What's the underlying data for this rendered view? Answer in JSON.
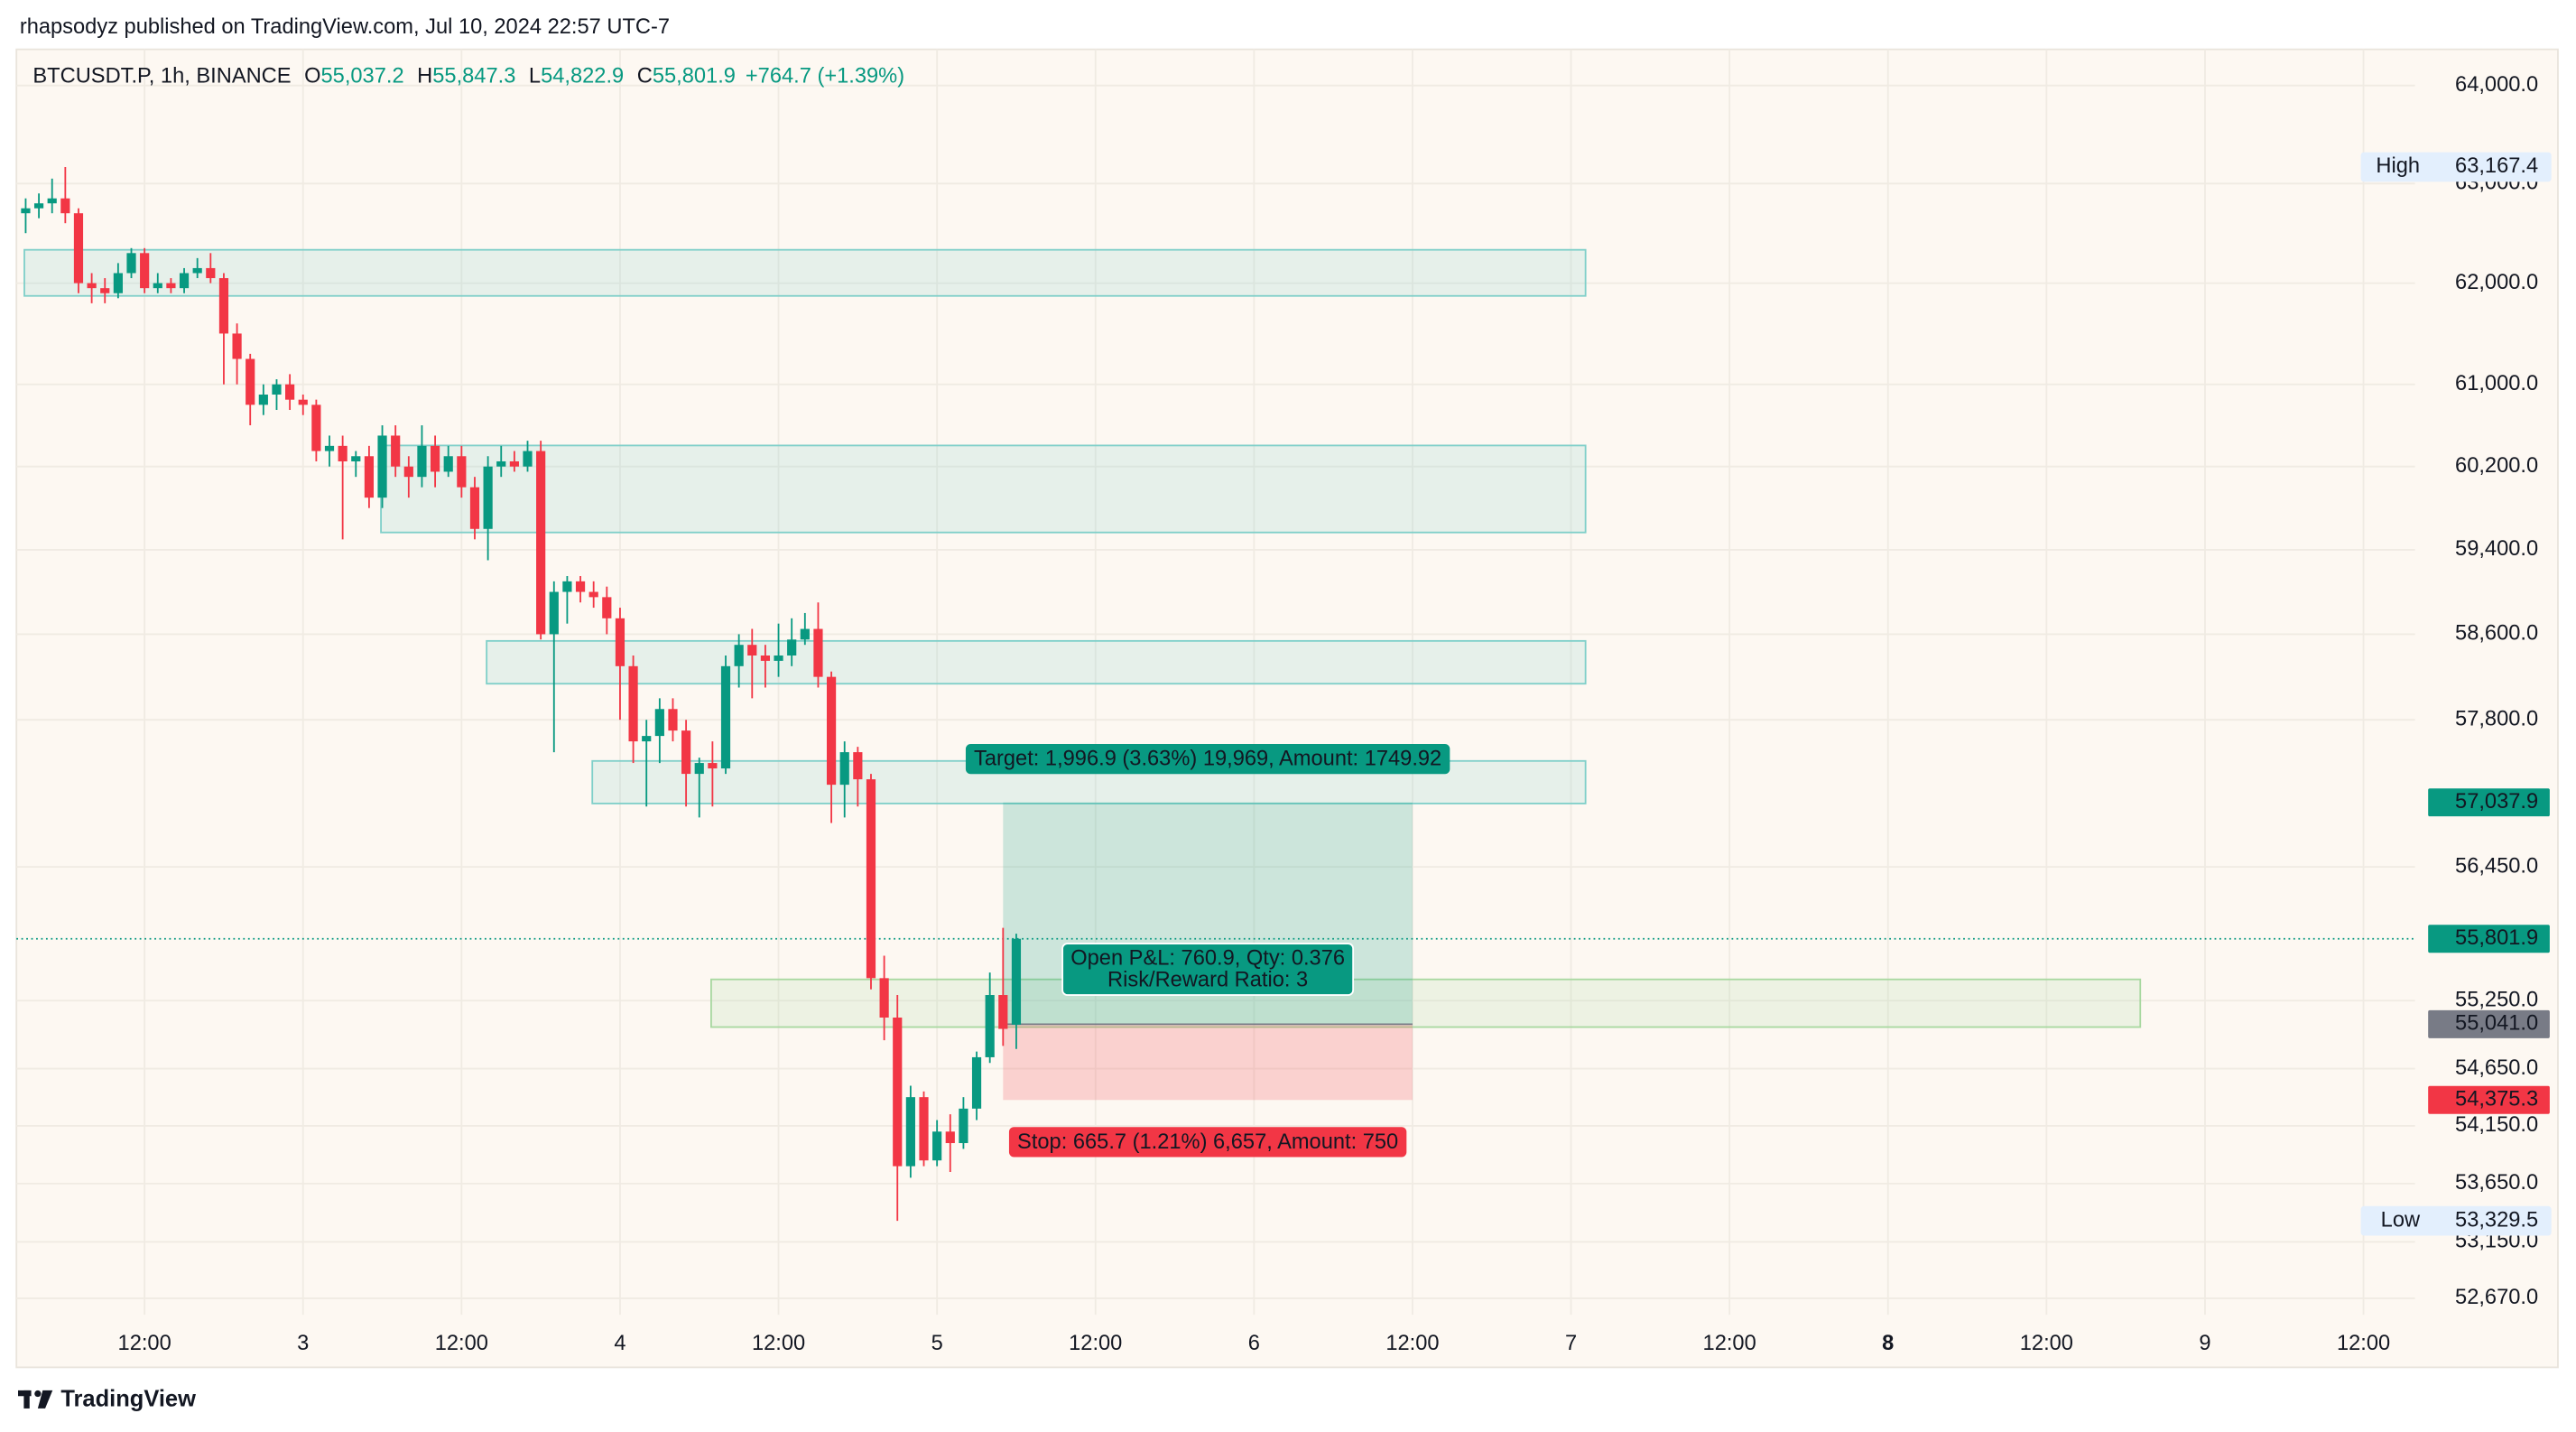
{
  "header": {
    "published": "rhapsodyz published on TradingView.com, Jul 10, 2024 22:57 UTC-7",
    "symbol": "BTCUSDT.P, 1h, BINANCE",
    "ohlc": [
      {
        "key": "O",
        "text": "55,037.2"
      },
      {
        "key": "H",
        "text": "55,847.3"
      },
      {
        "key": "L",
        "text": "54,822.9"
      },
      {
        "key": "C",
        "text": "55,801.9"
      }
    ],
    "change": "+764.7 (+1.39%)"
  },
  "footer": {
    "brand": "TradingView"
  },
  "chart_data": {
    "type": "candlestick",
    "log_scale": true,
    "grid": true,
    "up_color": "#089981",
    "down_color": "#f23645",
    "xlim": [
      2.3,
      183.9
    ],
    "xticks": [
      {
        "value": 12,
        "label": "12:00"
      },
      {
        "value": 24,
        "label": "3"
      },
      {
        "value": 36,
        "label": "12:00"
      },
      {
        "value": 48,
        "label": "4"
      },
      {
        "value": 60,
        "label": "12:00"
      },
      {
        "value": 72,
        "label": "5"
      },
      {
        "value": 84,
        "label": "12:00"
      },
      {
        "value": 96,
        "label": "6"
      },
      {
        "value": 108,
        "label": "12:00"
      },
      {
        "value": 120,
        "label": "7"
      },
      {
        "value": 132,
        "label": "12:00"
      },
      {
        "value": 144,
        "label": "8",
        "bold": true
      },
      {
        "value": 156,
        "label": "12:00"
      },
      {
        "value": 168,
        "label": "9"
      },
      {
        "value": 180,
        "label": "12:00"
      }
    ],
    "ylim": [
      52531,
      64373
    ],
    "yticks": [
      {
        "value": 64000,
        "label": "64,000.0"
      },
      {
        "value": 63000,
        "label": "63,000.0"
      },
      {
        "value": 62000,
        "label": "62,000.0"
      },
      {
        "value": 61000,
        "label": "61,000.0"
      },
      {
        "value": 60200,
        "label": "60,200.0"
      },
      {
        "value": 59400,
        "label": "59,400.0"
      },
      {
        "value": 58600,
        "label": "58,600.0"
      },
      {
        "value": 57800,
        "label": "57,800.0"
      },
      {
        "value": 56450,
        "label": "56,450.0"
      },
      {
        "value": 55250,
        "label": "55,250.0"
      },
      {
        "value": 54650,
        "label": "54,650.0"
      },
      {
        "value": 54150,
        "label": "54,150.0"
      },
      {
        "value": 53650,
        "label": "53,650.0"
      },
      {
        "value": 53150,
        "label": "53,150.0"
      },
      {
        "value": 52670,
        "label": "52,670.0"
      }
    ],
    "x": [
      3,
      4,
      5,
      6,
      7,
      8,
      9,
      10,
      11,
      12,
      13,
      14,
      15,
      16,
      17,
      18,
      19,
      20,
      21,
      22,
      23,
      24,
      25,
      26,
      27,
      28,
      29,
      30,
      31,
      32,
      33,
      34,
      35,
      36,
      37,
      38,
      39,
      40,
      41,
      42,
      43,
      44,
      45,
      46,
      47,
      48,
      49,
      50,
      51,
      52,
      53,
      54,
      55,
      56,
      57,
      58,
      59,
      60,
      61,
      62,
      63,
      64,
      65,
      66,
      67,
      68,
      69,
      70,
      71,
      72,
      73,
      74,
      75,
      76,
      77,
      78
    ],
    "open": [
      62700,
      62750,
      62800,
      62850,
      62700,
      62000,
      61950,
      61900,
      62100,
      62300,
      61950,
      62000,
      61950,
      62100,
      62150,
      62050,
      61500,
      61250,
      60800,
      60900,
      61000,
      60850,
      60800,
      60350,
      60400,
      60250,
      60300,
      59900,
      60500,
      60200,
      60100,
      60400,
      60150,
      60300,
      60000,
      59600,
      60200,
      60250,
      60200,
      60350,
      58600,
      59000,
      59100,
      59000,
      58950,
      58750,
      58300,
      57600,
      57650,
      57900,
      57700,
      57300,
      57400,
      57350,
      58300,
      58500,
      58400,
      58350,
      58400,
      58550,
      58650,
      58200,
      57200,
      57500,
      57250,
      55450,
      55100,
      53800,
      54400,
      53850,
      54100,
      54000,
      54300,
      54750,
      55300,
      55037.2
    ],
    "high": [
      62850,
      62900,
      63050,
      63167.4,
      62750,
      62100,
      62050,
      62200,
      62350,
      62350,
      62100,
      62050,
      62150,
      62250,
      62300,
      62100,
      61600,
      61300,
      61000,
      61050,
      61100,
      60900,
      60850,
      60500,
      60500,
      60350,
      60400,
      60600,
      60600,
      60300,
      60600,
      60500,
      60400,
      60400,
      60100,
      60300,
      60400,
      60350,
      60450,
      60450,
      59100,
      59150,
      59150,
      59100,
      59050,
      58850,
      58400,
      57800,
      58000,
      58000,
      57800,
      57450,
      57600,
      58400,
      58600,
      58650,
      58500,
      58700,
      58750,
      58800,
      58900,
      58250,
      57600,
      57550,
      57300,
      55650,
      55300,
      54500,
      54450,
      54200,
      54250,
      54400,
      54800,
      55500,
      55900,
      55847.3
    ],
    "low": [
      62500,
      62650,
      62700,
      62600,
      61900,
      61800,
      61800,
      61850,
      62050,
      61900,
      61900,
      61900,
      61900,
      62050,
      62000,
      61000,
      61000,
      60600,
      60700,
      60750,
      60750,
      60700,
      60250,
      60200,
      59500,
      60100,
      59800,
      59800,
      60100,
      59900,
      60000,
      60000,
      60100,
      59900,
      59500,
      59300,
      60100,
      60150,
      60150,
      58550,
      57500,
      58700,
      58900,
      58850,
      58600,
      57800,
      57400,
      57000,
      57400,
      57600,
      57000,
      56900,
      57000,
      57300,
      58100,
      58000,
      58100,
      58200,
      58300,
      58500,
      58100,
      56850,
      56900,
      57000,
      55350,
      54900,
      53329.5,
      53700,
      53800,
      53800,
      53750,
      53950,
      54200,
      54700,
      54850,
      54822.9
    ],
    "close": [
      62750,
      62800,
      62850,
      62700,
      62000,
      61950,
      61900,
      62100,
      62300,
      61950,
      62000,
      61950,
      62100,
      62150,
      62050,
      61500,
      61250,
      60800,
      60900,
      61000,
      60850,
      60800,
      60350,
      60400,
      60250,
      60300,
      59900,
      60500,
      60200,
      60100,
      60400,
      60150,
      60300,
      60000,
      59600,
      60200,
      60250,
      60200,
      60350,
      58600,
      59000,
      59100,
      59000,
      58950,
      58750,
      58300,
      57600,
      57650,
      57900,
      57700,
      57300,
      57400,
      57350,
      58300,
      58500,
      58400,
      58350,
      58400,
      58550,
      58650,
      58200,
      57200,
      57500,
      57250,
      55450,
      55100,
      53800,
      54400,
      53850,
      54100,
      54000,
      54300,
      54750,
      55300,
      55000,
      55801.9
    ],
    "zones": [
      {
        "x": [
          2.9,
          121.1
        ],
        "y": [
          61873,
          62333
        ],
        "color": "#7fcfc9"
      },
      {
        "x": [
          29.9,
          121.1
        ],
        "y": [
          59566,
          60404
        ],
        "color": "#7fcfc9"
      },
      {
        "x": [
          37.9,
          121.1
        ],
        "y": [
          58136,
          58537
        ],
        "color": "#7fcfc9"
      },
      {
        "x": [
          45.9,
          121.1
        ],
        "y": [
          57028,
          57419
        ],
        "color": "#7fcfc9"
      },
      {
        "x": [
          54.9,
          163.1
        ],
        "y": [
          55016,
          55439
        ],
        "color": "#a8d8a0"
      }
    ],
    "current_price": 55801.9,
    "position": {
      "x": [
        77,
        108
      ],
      "entry": 55041.0,
      "target": 57037.9,
      "stop": 54375.3,
      "target_label": "Target: 1,996.9 (3.63%) 19,969, Amount: 1749.92",
      "pnl_label": "Open P&L: 760.9, Qty: 0.376",
      "ratio_label": "Risk/Reward Ratio: 3",
      "stop_label": "Stop: 665.7 (1.21%) 6,657, Amount: 750"
    },
    "price_badges": [
      {
        "value": 57037.9,
        "label": "57,037.9",
        "color": "#089981"
      },
      {
        "value": 55801.9,
        "label": "55,801.9",
        "color": "#089981"
      },
      {
        "value": 55041.0,
        "label": "55,041.0",
        "color": "#787b86"
      },
      {
        "value": 54375.3,
        "label": "54,375.3",
        "color": "#f23645"
      }
    ],
    "extremes": [
      {
        "name": "High",
        "value": 63167.4,
        "label": "63,167.4"
      },
      {
        "name": "Low",
        "value": 53329.5,
        "label": "53,329.5"
      }
    ]
  }
}
